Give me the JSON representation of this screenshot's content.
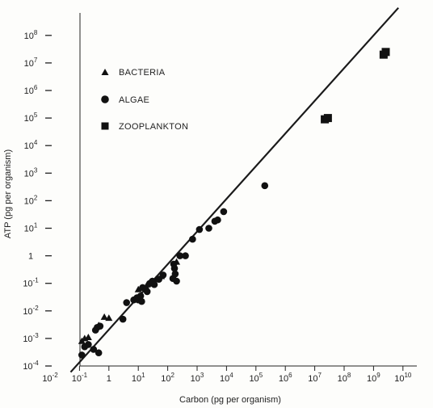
{
  "chart_data": {
    "type": "scatter",
    "title": "",
    "xlabel": "Carbon (pg per organism)",
    "ylabel": "ATP (pg per organism)",
    "xscale": "log",
    "yscale": "log",
    "xlim": [
      0.01,
      10000000000
    ],
    "ylim": [
      0.0001,
      100000000
    ],
    "grid": false,
    "legend_position": "top-left",
    "x_ticks": [
      {
        "value": 0.01,
        "base": "10",
        "exp": "-2"
      },
      {
        "value": 0.1,
        "base": "10",
        "exp": "-1"
      },
      {
        "value": 1,
        "base": "1",
        "exp": ""
      },
      {
        "value": 10,
        "base": "10",
        "exp": "1"
      },
      {
        "value": 100,
        "base": "10",
        "exp": "2"
      },
      {
        "value": 1000,
        "base": "10",
        "exp": "3"
      },
      {
        "value": 10000,
        "base": "10",
        "exp": "4"
      },
      {
        "value": 100000,
        "base": "10",
        "exp": "5"
      },
      {
        "value": 1000000,
        "base": "10",
        "exp": "6"
      },
      {
        "value": 10000000,
        "base": "10",
        "exp": "7"
      },
      {
        "value": 100000000,
        "base": "10",
        "exp": "8"
      },
      {
        "value": 1000000000,
        "base": "10",
        "exp": "9"
      },
      {
        "value": 10000000000,
        "base": "10",
        "exp": "10"
      }
    ],
    "y_ticks": [
      {
        "value": 0.0001,
        "base": "10",
        "exp": "-4"
      },
      {
        "value": 0.001,
        "base": "10",
        "exp": "-3"
      },
      {
        "value": 0.01,
        "base": "10",
        "exp": "-2"
      },
      {
        "value": 0.1,
        "base": "10",
        "exp": "-1"
      },
      {
        "value": 1,
        "base": "1",
        "exp": ""
      },
      {
        "value": 10,
        "base": "10",
        "exp": "1"
      },
      {
        "value": 100,
        "base": "10",
        "exp": "2"
      },
      {
        "value": 1000,
        "base": "10",
        "exp": "3"
      },
      {
        "value": 10000,
        "base": "10",
        "exp": "4"
      },
      {
        "value": 100000,
        "base": "10",
        "exp": "5"
      },
      {
        "value": 1000000,
        "base": "10",
        "exp": "6"
      },
      {
        "value": 10000000,
        "base": "10",
        "exp": "7"
      },
      {
        "value": 100000000,
        "base": "10",
        "exp": "8"
      }
    ],
    "fit_line": {
      "from": [
        0.05,
        6e-05
      ],
      "to": [
        7000000000,
        1000000000
      ]
    },
    "series": [
      {
        "name": "BACTERIA",
        "marker": "triangle",
        "color": "#111111",
        "points": [
          [
            0.12,
            0.0008
          ],
          [
            0.15,
            0.001
          ],
          [
            0.2,
            0.0011
          ],
          [
            0.45,
            0.003
          ],
          [
            0.7,
            0.006
          ],
          [
            1.0,
            0.0055
          ],
          [
            10,
            0.06
          ],
          [
            20,
            0.09
          ],
          [
            30,
            0.12
          ],
          [
            40,
            0.14
          ],
          [
            60,
            0.18
          ],
          [
            200,
            0.6
          ]
        ]
      },
      {
        "name": "ALGAE",
        "marker": "circle",
        "color": "#111111",
        "points": [
          [
            0.12,
            0.00025
          ],
          [
            0.15,
            0.0005
          ],
          [
            0.2,
            0.0006
          ],
          [
            0.3,
            0.0004
          ],
          [
            0.35,
            0.002
          ],
          [
            0.4,
            0.0025
          ],
          [
            0.45,
            0.0003
          ],
          [
            0.5,
            0.0028
          ],
          [
            3,
            0.005
          ],
          [
            4,
            0.02
          ],
          [
            7,
            0.025
          ],
          [
            9,
            0.03
          ],
          [
            10,
            0.025
          ],
          [
            12,
            0.035
          ],
          [
            13,
            0.022
          ],
          [
            14,
            0.07
          ],
          [
            18,
            0.06
          ],
          [
            20,
            0.05
          ],
          [
            25,
            0.1
          ],
          [
            30,
            0.12
          ],
          [
            35,
            0.09
          ],
          [
            50,
            0.14
          ],
          [
            70,
            0.2
          ],
          [
            150,
            0.15
          ],
          [
            160,
            0.5
          ],
          [
            170,
            0.35
          ],
          [
            180,
            0.22
          ],
          [
            200,
            0.12
          ],
          [
            260,
            1.0
          ],
          [
            400,
            1.0
          ],
          [
            700,
            4.0
          ],
          [
            1200,
            9
          ],
          [
            2500,
            10
          ],
          [
            4000,
            18
          ],
          [
            5000,
            20
          ],
          [
            8000,
            40
          ],
          [
            200000,
            350
          ]
        ]
      },
      {
        "name": "ZOOPLANKTON",
        "marker": "square",
        "color": "#111111",
        "points": [
          [
            22000000,
            90000
          ],
          [
            28000000,
            100000
          ],
          [
            2200000000,
            20000000
          ],
          [
            2600000000,
            25000000
          ]
        ]
      }
    ]
  }
}
